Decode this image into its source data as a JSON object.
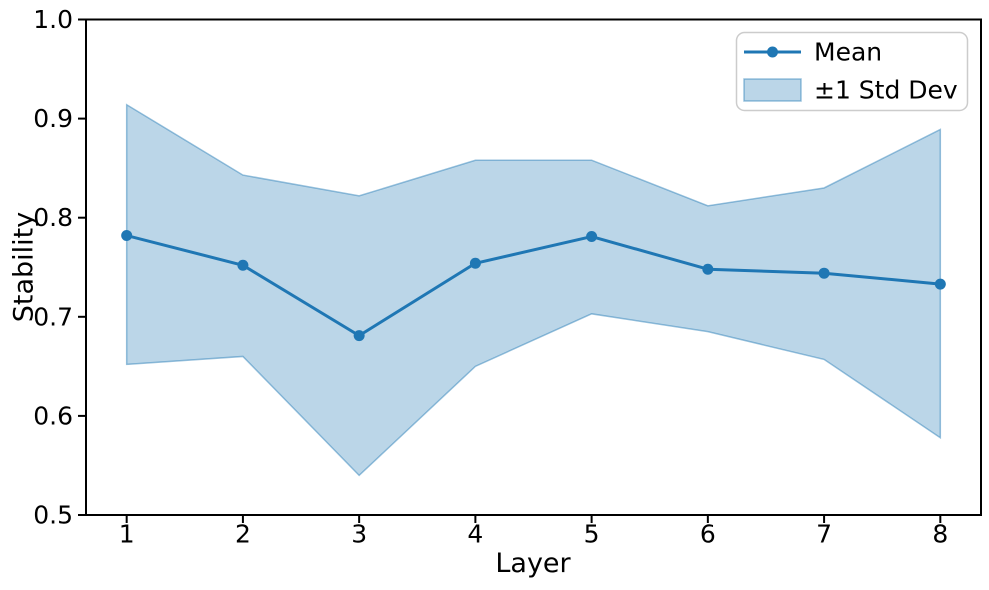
{
  "chart_data": {
    "type": "line",
    "title": "",
    "xlabel": "Layer",
    "ylabel": "Stability",
    "x": [
      1,
      2,
      3,
      4,
      5,
      6,
      7,
      8
    ],
    "series": [
      {
        "name": "Mean",
        "values": [
          0.782,
          0.752,
          0.681,
          0.754,
          0.781,
          0.748,
          0.744,
          0.733
        ],
        "marker": "circle"
      }
    ],
    "band": {
      "name": "±1 Std Dev",
      "upper": [
        0.914,
        0.843,
        0.822,
        0.858,
        0.858,
        0.812,
        0.83,
        0.889
      ],
      "lower": [
        0.652,
        0.66,
        0.54,
        0.65,
        0.703,
        0.685,
        0.657,
        0.578
      ]
    },
    "xlim": [
      0.65,
      8.35
    ],
    "ylim": [
      0.5,
      1.0
    ],
    "xticks": [
      "1",
      "2",
      "3",
      "4",
      "5",
      "6",
      "7",
      "8"
    ],
    "yticks": [
      "0.5",
      "0.6",
      "0.7",
      "0.8",
      "0.9",
      "1.0"
    ],
    "grid": false,
    "legend": {
      "position": "upper right",
      "entries": [
        {
          "label": "Mean",
          "type": "line"
        },
        {
          "label": "±1 Std Dev",
          "type": "patch"
        }
      ]
    },
    "colors": {
      "line": "#1f77b4",
      "band_fill": "#1f77b4",
      "band_alpha": 0.3,
      "band_edge_alpha": 0.45,
      "axis": "#000000",
      "legend_border": "#cccccc",
      "background": "#ffffff"
    }
  }
}
